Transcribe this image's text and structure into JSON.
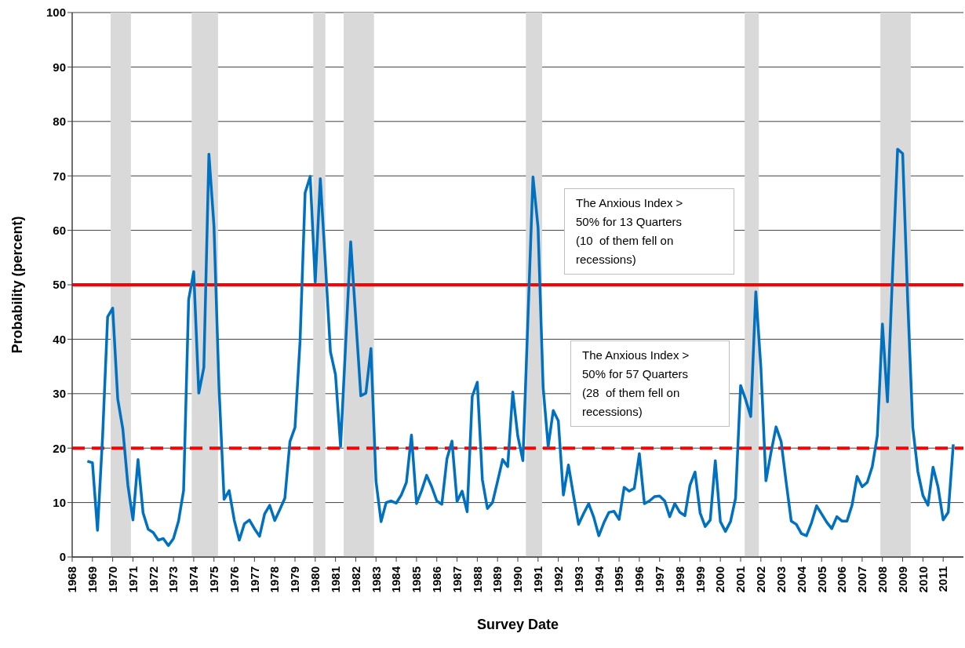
{
  "chart_data": {
    "type": "line",
    "xlabel": "Survey Date",
    "ylabel": "Probability (percent)",
    "x": [
      1968.75,
      1969,
      1969.25,
      1969.5,
      1969.75,
      1970,
      1970.25,
      1970.5,
      1970.75,
      1971,
      1971.25,
      1971.5,
      1971.75,
      1972,
      1972.25,
      1972.5,
      1972.75,
      1973,
      1973.25,
      1973.5,
      1973.75,
      1974,
      1974.25,
      1974.5,
      1974.75,
      1975,
      1975.25,
      1975.5,
      1975.75,
      1976,
      1976.25,
      1976.5,
      1976.75,
      1977,
      1977.25,
      1977.5,
      1977.75,
      1978,
      1978.25,
      1978.5,
      1978.75,
      1979,
      1979.25,
      1979.5,
      1979.75,
      1980,
      1980.25,
      1980.5,
      1980.75,
      1981,
      1981.25,
      1981.5,
      1981.75,
      1982,
      1982.25,
      1982.5,
      1982.75,
      1983,
      1983.25,
      1983.5,
      1983.75,
      1984,
      1984.25,
      1984.5,
      1984.75,
      1985,
      1985.25,
      1985.5,
      1985.75,
      1986,
      1986.25,
      1986.5,
      1986.75,
      1987,
      1987.25,
      1987.5,
      1987.75,
      1988,
      1988.25,
      1988.5,
      1988.75,
      1989,
      1989.25,
      1989.5,
      1989.75,
      1990,
      1990.25,
      1990.5,
      1990.75,
      1991,
      1991.25,
      1991.5,
      1991.75,
      1992,
      1992.25,
      1992.5,
      1992.75,
      1993,
      1993.25,
      1993.5,
      1993.75,
      1994,
      1994.25,
      1994.5,
      1994.75,
      1995,
      1995.25,
      1995.5,
      1995.75,
      1996,
      1996.25,
      1996.5,
      1996.75,
      1997,
      1997.25,
      1997.5,
      1997.75,
      1998,
      1998.25,
      1998.5,
      1998.75,
      1999,
      1999.25,
      1999.5,
      1999.75,
      2000,
      2000.25,
      2000.5,
      2000.75,
      2001,
      2001.25,
      2001.5,
      2001.75,
      2002,
      2002.25,
      2002.5,
      2002.75,
      2003,
      2003.25,
      2003.5,
      2003.75,
      2004,
      2004.25,
      2004.5,
      2004.75,
      2005,
      2005.25,
      2005.5,
      2005.75,
      2006,
      2006.25,
      2006.5,
      2006.75,
      2007,
      2007.25,
      2007.5,
      2007.75,
      2008,
      2008.25,
      2008.5,
      2008.75,
      2009,
      2009.25,
      2009.5,
      2009.75,
      2010,
      2010.25,
      2010.5,
      2010.75,
      2011,
      2011.25,
      2011.5
    ],
    "values": [
      17.6,
      17.3,
      4.9,
      22,
      44.1,
      45.7,
      29.0,
      23.5,
      13.2,
      6.8,
      17.9,
      8.1,
      5.1,
      4.5,
      3.1,
      3.4,
      2.1,
      3.4,
      6.6,
      12.2,
      47.3,
      52.4,
      30.1,
      34.8,
      74.0,
      60.8,
      31,
      10.6,
      12.2,
      6.8,
      3.1,
      6.1,
      6.8,
      5.2,
      3.8,
      7.9,
      9.5,
      6.7,
      8.7,
      10.8,
      21.2,
      23.8,
      39.6,
      66.9,
      69.9,
      50.5,
      69.5,
      54,
      37.7,
      33.5,
      20.3,
      39,
      57.9,
      43.8,
      29.6,
      30.1,
      38.3,
      13.9,
      6.5,
      10.0,
      10.3,
      9.9,
      11.4,
      13.7,
      22.4,
      9.8,
      12.2,
      15.0,
      12.9,
      10.3,
      9.7,
      18.0,
      21.3,
      10.2,
      12.1,
      8.3,
      29.5,
      32.1,
      14.2,
      8.9,
      10.0,
      13.9,
      17.9,
      16.6,
      30.3,
      22.2,
      17.7,
      43.8,
      69.8,
      60.5,
      31.2,
      20.3,
      26.9,
      25.0,
      11.4,
      16.9,
      11.3,
      6.0,
      8.0,
      9.8,
      7.3,
      3.9,
      6.3,
      8.2,
      8.4,
      6.9,
      12.8,
      12.1,
      12.6,
      19.0,
      9.8,
      10.3,
      11.1,
      11.2,
      10.3,
      7.4,
      9.8,
      8.2,
      7.6,
      13.2,
      15.6,
      8.1,
      5.6,
      6.8,
      17.7,
      6.5,
      4.7,
      6.5,
      10.8,
      31.5,
      28.9,
      25.8,
      48.7,
      34.8,
      14.0,
      19.2,
      23.9,
      21.2,
      13.7,
      6.6,
      6.0,
      4.3,
      3.9,
      6.3,
      9.4,
      7.9,
      6.4,
      5.2,
      7.4,
      6.6,
      6.6,
      9.5,
      14.8,
      12.9,
      13.7,
      16.6,
      22.3,
      42.8,
      28.5,
      52,
      74.9,
      74.1,
      47,
      23.8,
      15.7,
      11.3,
      9.5,
      16.5,
      12.8,
      6.8,
      8.2,
      20.7
    ],
    "color": "#0070c0",
    "marker": "none",
    "line_style": "solid",
    "grid": "y",
    "xlim": [
      1968,
      2012
    ],
    "xticks": [
      1968,
      1969,
      1970,
      1971,
      1972,
      1973,
      1974,
      1975,
      1976,
      1977,
      1978,
      1979,
      1980,
      1981,
      1982,
      1983,
      1984,
      1985,
      1986,
      1987,
      1988,
      1989,
      1990,
      1991,
      1992,
      1993,
      1994,
      1995,
      1996,
      1997,
      1998,
      1999,
      2000,
      2001,
      2002,
      2003,
      2004,
      2005,
      2006,
      2007,
      2008,
      2009,
      2010,
      2011
    ],
    "ylim": [
      0,
      100
    ],
    "yticks": [
      0,
      10,
      20,
      30,
      40,
      50,
      60,
      70,
      80,
      90,
      100
    ],
    "ref_lines": [
      {
        "axis": "y",
        "value": 50,
        "color": "#ff0000",
        "line_style": "solid"
      },
      {
        "axis": "y",
        "value": 20,
        "color": "#ff0000",
        "line_style": "dashed"
      }
    ],
    "bands": [
      {
        "axis": "x",
        "from": 1969.9,
        "to": 1970.9,
        "color": "#d9d9d9"
      },
      {
        "axis": "x",
        "from": 1973.9,
        "to": 1975.2,
        "color": "#d9d9d9"
      },
      {
        "axis": "x",
        "from": 1979.9,
        "to": 1980.5,
        "color": "#d9d9d9"
      },
      {
        "axis": "x",
        "from": 1981.4,
        "to": 1982.9,
        "color": "#d9d9d9"
      },
      {
        "axis": "x",
        "from": 1990.4,
        "to": 1991.2,
        "color": "#d9d9d9"
      },
      {
        "axis": "x",
        "from": 2001.2,
        "to": 2001.9,
        "color": "#d9d9d9"
      },
      {
        "axis": "x",
        "from": 2007.9,
        "to": 2009.4,
        "color": "#d9d9d9"
      }
    ],
    "annotations": [
      "The Anxious Index > 50% for 13 Quarters (10  of them fell on recessions)",
      "The Anxious Index > 50% for 57 Quarters (28  of them fell on recessions)"
    ]
  }
}
